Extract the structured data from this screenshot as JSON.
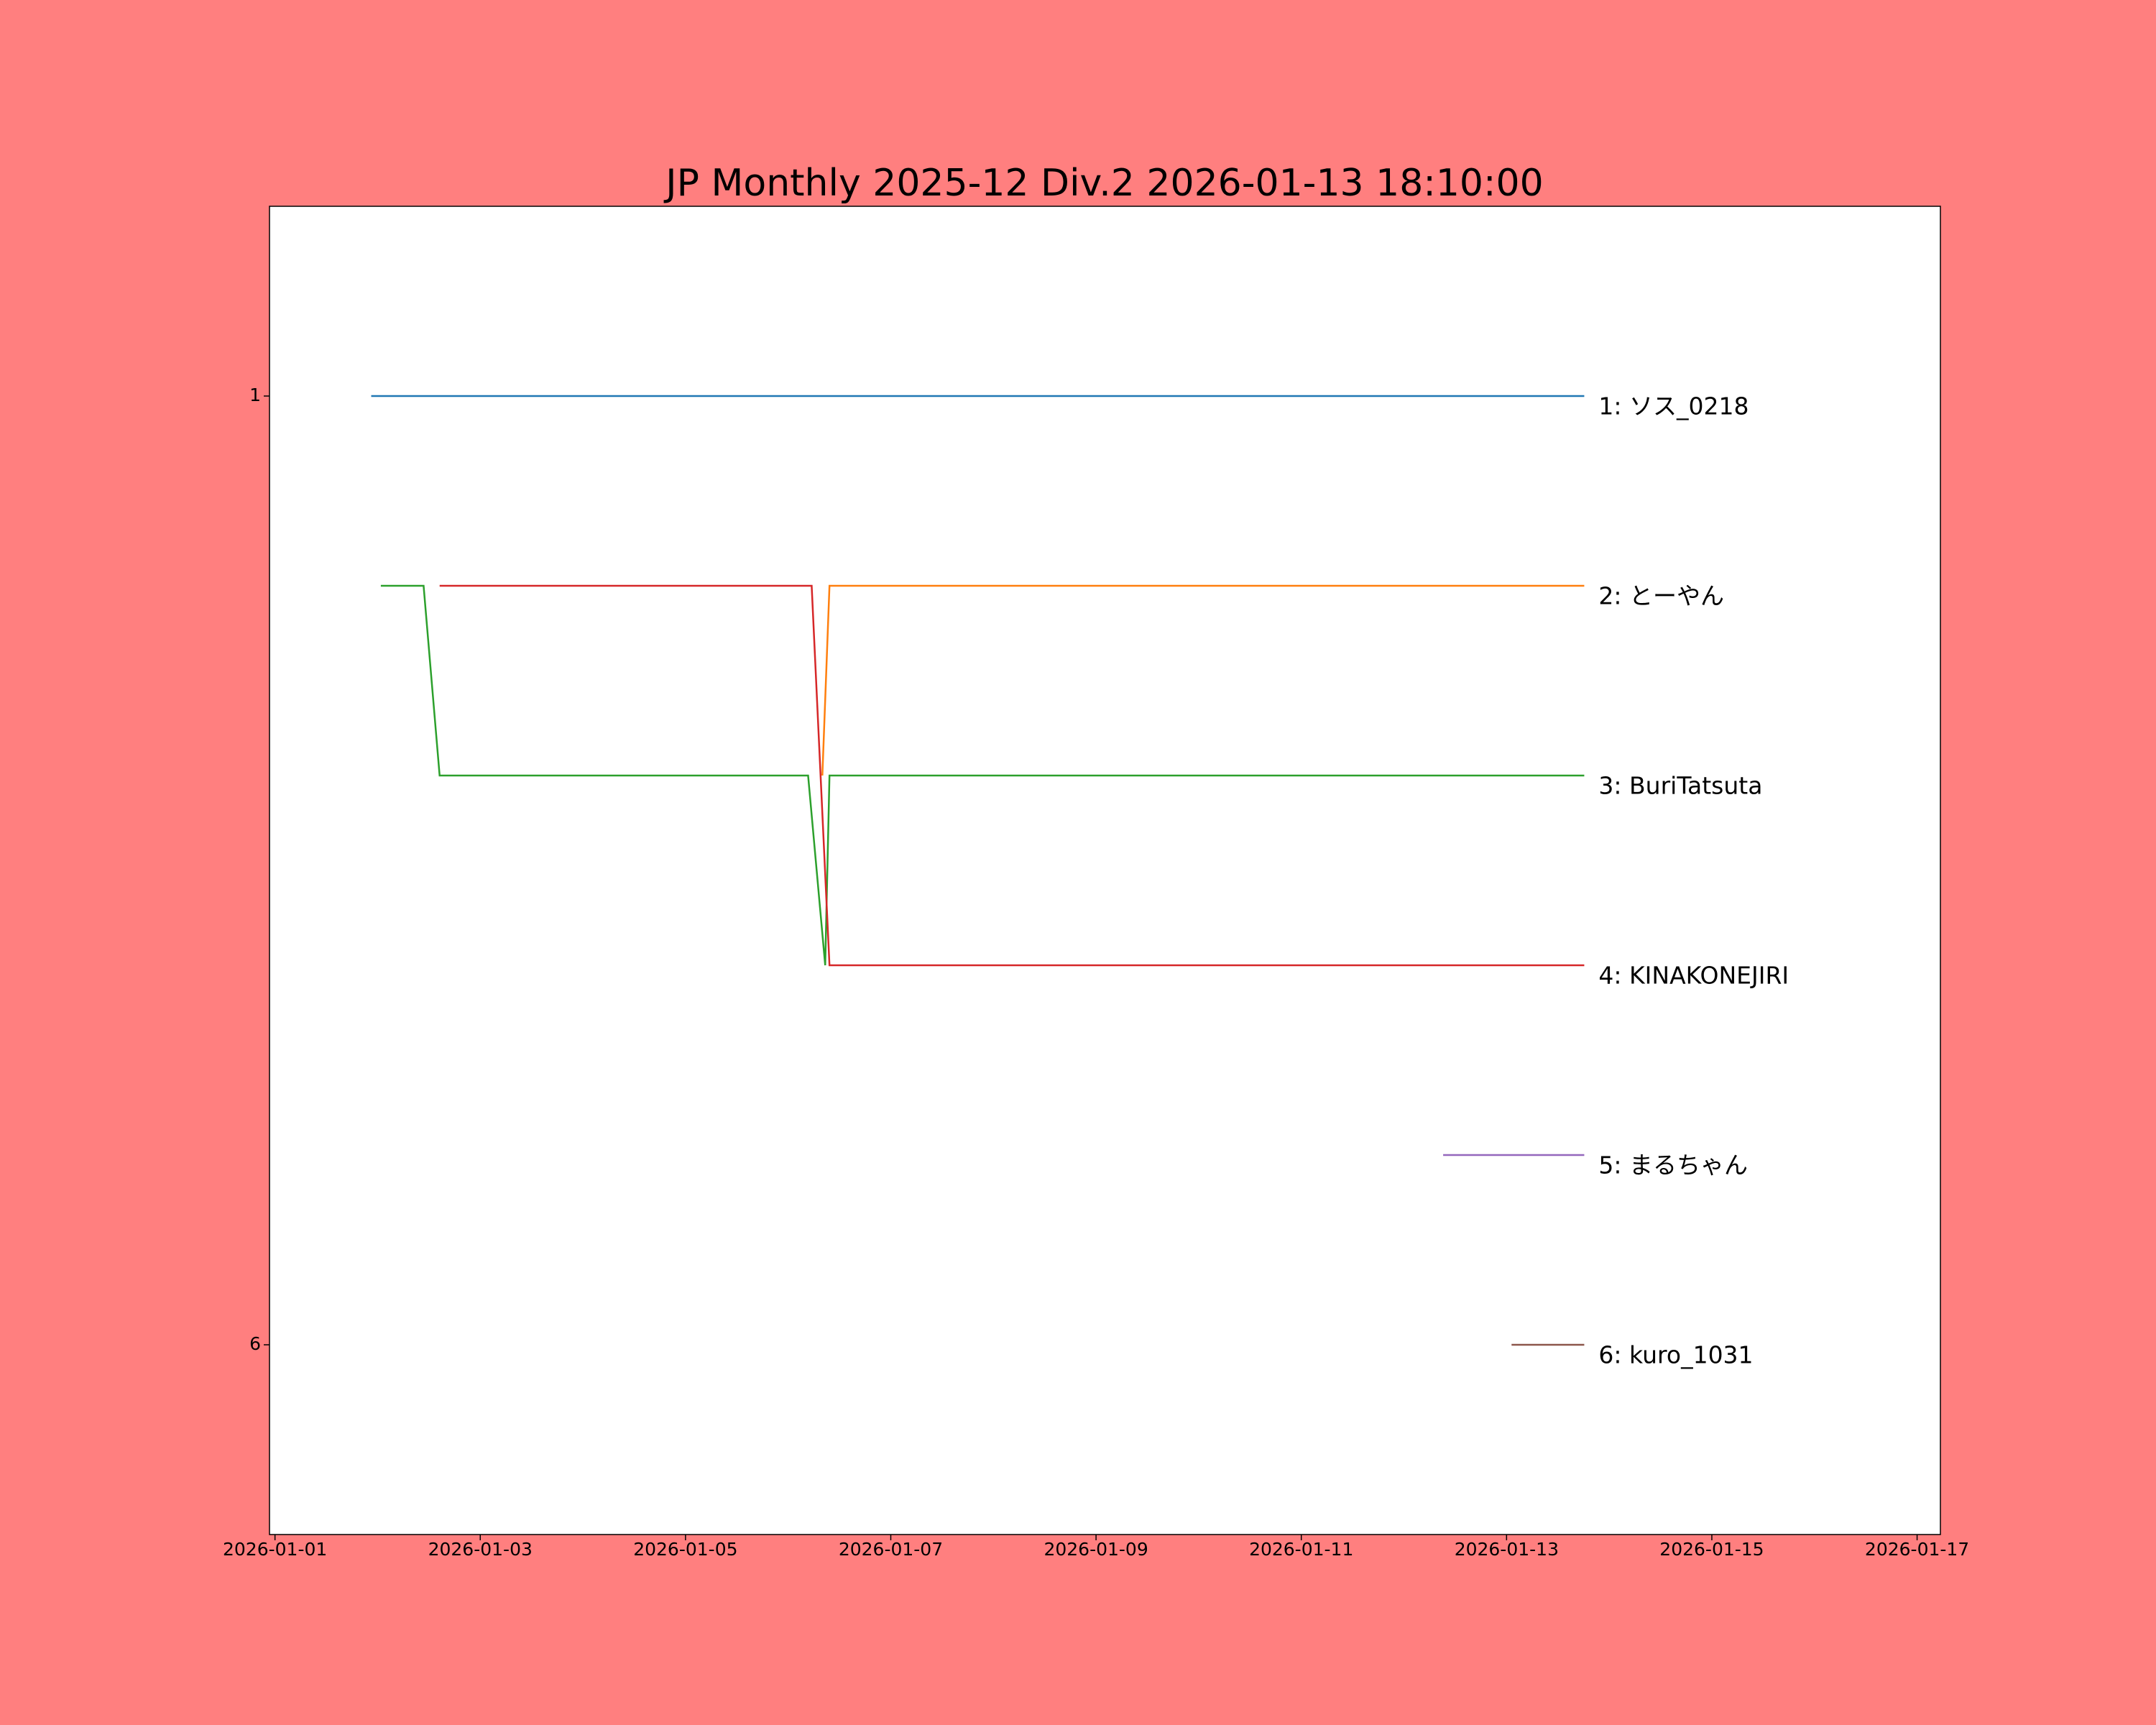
{
  "chart_data": {
    "type": "line",
    "title": "JP Monthly 2025-12 Div.2 2026-01-13 18:10:00",
    "background": "#ff7f7f",
    "xlim": [
      "2025-12-31T22:43:00",
      "2026-01-17T05:27:00"
    ],
    "xticks": [
      "2026-01-01",
      "2026-01-03",
      "2026-01-05",
      "2026-01-07",
      "2026-01-09",
      "2026-01-11",
      "2026-01-13",
      "2026-01-15",
      "2026-01-17"
    ],
    "ylim": [
      7,
      0
    ],
    "yticks": [
      1,
      6
    ],
    "series": [
      {
        "name": "1: ソス_0218",
        "color": "#1f77b4",
        "x": [
          "2026-01-01T22:30:00",
          "2026-01-13T18:10:00"
        ],
        "values": [
          1,
          1
        ]
      },
      {
        "name": "2: とーやん",
        "color": "#ff7f0e",
        "x": [
          "2026-01-06T08:00:00",
          "2026-01-06T09:40:00",
          "2026-01-13T18:10:00"
        ],
        "values": [
          3,
          2,
          2
        ]
      },
      {
        "name": "3: BuriTatsuta",
        "color": "#2ca02c",
        "x": [
          "2026-01-02T00:45:00",
          "2026-01-02T10:45:00",
          "2026-01-02T14:30:00",
          "2026-01-06T04:40:00",
          "2026-01-06T08:40:00",
          "2026-01-06T09:40:00",
          "2026-01-13T18:10:00"
        ],
        "values": [
          2,
          2,
          3,
          3,
          4,
          3,
          3
        ]
      },
      {
        "name": "4: KINAKONEJIRI",
        "color": "#d62728",
        "x": [
          "2026-01-02T14:30:00",
          "2026-01-06T05:30:00",
          "2026-01-06T09:40:00",
          "2026-01-13T18:10:00"
        ],
        "values": [
          2,
          2,
          4,
          4
        ]
      },
      {
        "name": "5: まるちゃん",
        "color": "#9467bd",
        "x": [
          "2026-01-12T09:10:00",
          "2026-01-13T18:10:00"
        ],
        "values": [
          5,
          5
        ]
      },
      {
        "name": "6: kuro_1031",
        "color": "#8c564b",
        "x": [
          "2026-01-13T01:10:00",
          "2026-01-13T18:10:00"
        ],
        "values": [
          6,
          6
        ]
      }
    ]
  }
}
